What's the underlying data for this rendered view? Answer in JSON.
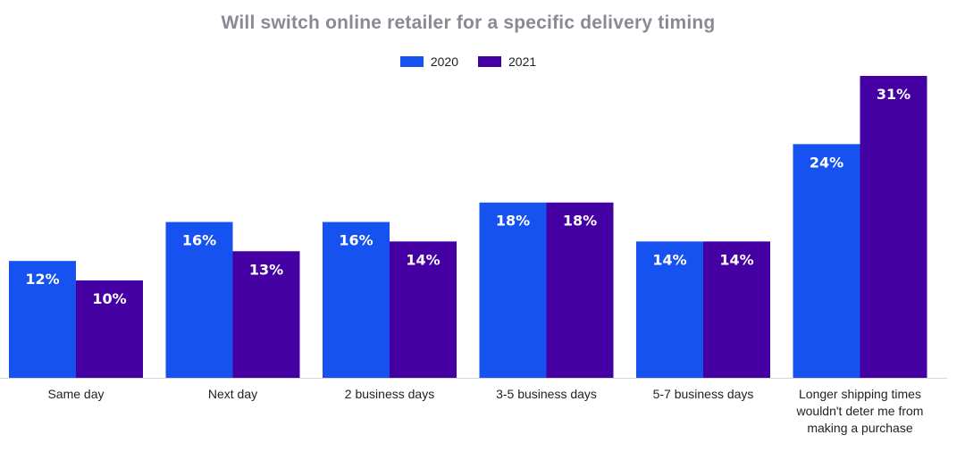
{
  "chart_data": {
    "type": "bar",
    "title": "Will switch online retailer for a specific delivery timing",
    "categories": [
      [
        "Same day"
      ],
      [
        "Next day"
      ],
      [
        "2 business days"
      ],
      [
        "3-5 business days"
      ],
      [
        "5-7 business days"
      ],
      [
        "Longer shipping times",
        "wouldn't deter me from",
        "making a purchase"
      ]
    ],
    "series": [
      {
        "name": "2020",
        "color": "#1652f0",
        "values": [
          12,
          16,
          16,
          18,
          14,
          24
        ]
      },
      {
        "name": "2021",
        "color": "#4400a3",
        "values": [
          10,
          13,
          14,
          18,
          14,
          31
        ]
      }
    ],
    "value_suffix": "%",
    "ylim": [
      0,
      31
    ],
    "legend_position": "top-center",
    "grid": false
  }
}
